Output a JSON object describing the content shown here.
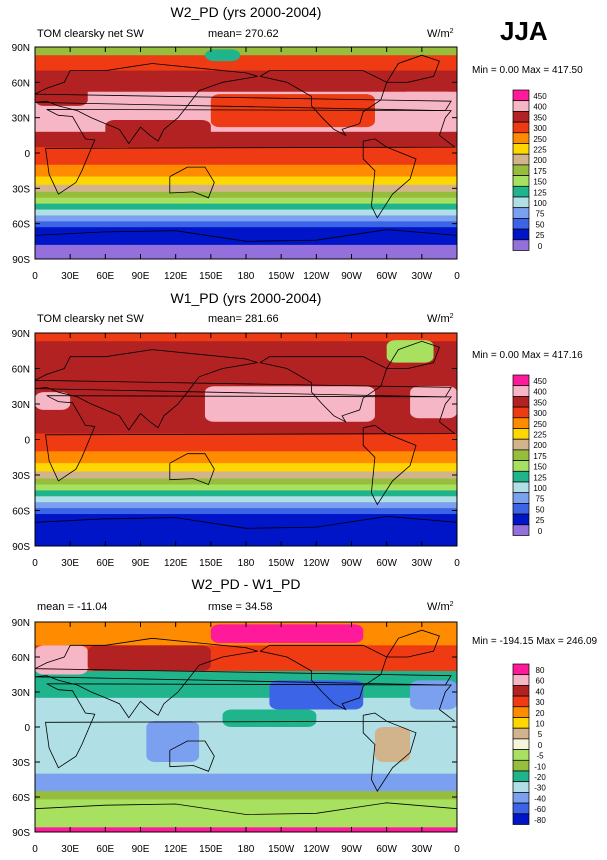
{
  "season": "JJA",
  "units": "W/m",
  "units_sup": "2",
  "chart_data": [
    {
      "type": "heatmap",
      "title": "W2_PD (yrs 2000-2004)",
      "subtitle_left": "TOM clearsky net SW",
      "subtitle_mid": "mean= 270.62",
      "minmax": "Min =   0.00 Max = 417.50",
      "xticks": [
        "0",
        "30E",
        "60E",
        "90E",
        "120E",
        "150E",
        "180",
        "150W",
        "120W",
        "90W",
        "60W",
        "30W",
        "0"
      ],
      "yticks": [
        "90N",
        "60N",
        "30N",
        "0",
        "30S",
        "60S",
        "90S"
      ],
      "xlim": [
        0,
        360
      ],
      "ylim": [
        -90,
        90
      ],
      "levels": [
        "450",
        "400",
        "350",
        "300",
        "250",
        "225",
        "200",
        "175",
        "150",
        "125",
        "100",
        "75",
        "50",
        "25",
        "0"
      ],
      "colors": [
        "#ff1a9c",
        "#f7b6c6",
        "#b22222",
        "#ee3b14",
        "#ff8c00",
        "#ffd700",
        "#d2b48c",
        "#96bd3c",
        "#a8e05f",
        "#1fb48c",
        "#b0e0e6",
        "#7ba0f0",
        "#3c64e6",
        "#0014c8",
        "#9370db"
      ],
      "bands": [
        {
          "lat1": 90,
          "lat2": 83,
          "level": "175"
        },
        {
          "lat1": 83,
          "lat2": 70,
          "level": "300"
        },
        {
          "lat1": 70,
          "lat2": 52,
          "level": "350"
        },
        {
          "lat1": 52,
          "lat2": 18,
          "level": "400"
        },
        {
          "lat1": 18,
          "lat2": 5,
          "level": "350"
        },
        {
          "lat1": 5,
          "lat2": -10,
          "level": "300"
        },
        {
          "lat1": -10,
          "lat2": -20,
          "level": "250"
        },
        {
          "lat1": -20,
          "lat2": -27,
          "level": "225"
        },
        {
          "lat1": -27,
          "lat2": -33,
          "level": "200"
        },
        {
          "lat1": -33,
          "lat2": -38,
          "level": "175"
        },
        {
          "lat1": -38,
          "lat2": -43,
          "level": "150"
        },
        {
          "lat1": -43,
          "lat2": -48,
          "level": "125"
        },
        {
          "lat1": -48,
          "lat2": -53,
          "level": "100"
        },
        {
          "lat1": -53,
          "lat2": -58,
          "level": "75"
        },
        {
          "lat1": -58,
          "lat2": -63,
          "level": "50"
        },
        {
          "lat1": -63,
          "lat2": -78,
          "level": "25"
        },
        {
          "lat1": -78,
          "lat2": -90,
          "level": "0"
        }
      ],
      "patches": [
        {
          "lon1": 150,
          "lon2": 290,
          "lat1": 50,
          "lat2": 22,
          "level": "300"
        },
        {
          "lon1": 60,
          "lon2": 150,
          "lat1": 28,
          "lat2": 12,
          "level": "350"
        },
        {
          "lon1": 0,
          "lon2": 45,
          "lat1": 62,
          "lat2": 40,
          "level": "350"
        },
        {
          "lon1": 310,
          "lon2": 360,
          "lat1": 52,
          "lat2": 28,
          "level": "400"
        },
        {
          "lon1": 145,
          "lon2": 175,
          "lat1": 88,
          "lat2": 78,
          "level": "125"
        }
      ]
    },
    {
      "type": "heatmap",
      "title": "W1_PD (yrs 2000-2004)",
      "subtitle_left": "TOM clearsky net SW",
      "subtitle_mid": "mean= 281.66",
      "minmax": "Min =   0.00 Max = 417.16",
      "xticks": [
        "0",
        "30E",
        "60E",
        "90E",
        "120E",
        "150E",
        "180",
        "150W",
        "120W",
        "90W",
        "60W",
        "30W",
        "0"
      ],
      "yticks": [
        "90N",
        "60N",
        "30N",
        "0",
        "30S",
        "60S",
        "90S"
      ],
      "xlim": [
        0,
        360
      ],
      "ylim": [
        -90,
        90
      ],
      "levels": [
        "450",
        "400",
        "350",
        "300",
        "250",
        "225",
        "200",
        "175",
        "150",
        "125",
        "100",
        "75",
        "50",
        "25",
        "0"
      ],
      "colors": [
        "#ff1a9c",
        "#f7b6c6",
        "#b22222",
        "#ee3b14",
        "#ff8c00",
        "#ffd700",
        "#d2b48c",
        "#96bd3c",
        "#a8e05f",
        "#1fb48c",
        "#b0e0e6",
        "#7ba0f0",
        "#3c64e6",
        "#0014c8",
        "#9370db"
      ],
      "bands": [
        {
          "lat1": 90,
          "lat2": 83,
          "level": "300"
        },
        {
          "lat1": 83,
          "lat2": 48,
          "level": "350"
        },
        {
          "lat1": 48,
          "lat2": 18,
          "level": "350"
        },
        {
          "lat1": 18,
          "lat2": 5,
          "level": "350"
        },
        {
          "lat1": 5,
          "lat2": -10,
          "level": "300"
        },
        {
          "lat1": -10,
          "lat2": -20,
          "level": "250"
        },
        {
          "lat1": -20,
          "lat2": -27,
          "level": "225"
        },
        {
          "lat1": -27,
          "lat2": -33,
          "level": "200"
        },
        {
          "lat1": -33,
          "lat2": -38,
          "level": "175"
        },
        {
          "lat1": -38,
          "lat2": -43,
          "level": "150"
        },
        {
          "lat1": -43,
          "lat2": -48,
          "level": "125"
        },
        {
          "lat1": -48,
          "lat2": -53,
          "level": "100"
        },
        {
          "lat1": -53,
          "lat2": -58,
          "level": "75"
        },
        {
          "lat1": -58,
          "lat2": -63,
          "level": "50"
        },
        {
          "lat1": -63,
          "lat2": -90,
          "level": "25"
        }
      ],
      "patches": [
        {
          "lon1": 145,
          "lon2": 290,
          "lat1": 45,
          "lat2": 15,
          "level": "400"
        },
        {
          "lon1": 320,
          "lon2": 360,
          "lat1": 45,
          "lat2": 18,
          "level": "400"
        },
        {
          "lon1": 0,
          "lon2": 30,
          "lat1": 40,
          "lat2": 25,
          "level": "400"
        },
        {
          "lon1": 300,
          "lon2": 340,
          "lat1": 84,
          "lat2": 65,
          "level": "150"
        }
      ]
    },
    {
      "type": "heatmap",
      "title": "W2_PD - W1_PD",
      "subtitle_left": "mean = -11.04",
      "subtitle_mid": "rmse =  34.58",
      "minmax": "Min = -194.15 Max = 246.09",
      "xticks": [
        "0",
        "30E",
        "60E",
        "90E",
        "120E",
        "150E",
        "180",
        "150W",
        "120W",
        "90W",
        "60W",
        "30W",
        "0"
      ],
      "yticks": [
        "90N",
        "60N",
        "30N",
        "0",
        "30S",
        "60S",
        "90S"
      ],
      "xlim": [
        0,
        360
      ],
      "ylim": [
        -90,
        90
      ],
      "levels": [
        "80",
        "60",
        "40",
        "30",
        "20",
        "10",
        "5",
        "0",
        "-5",
        "-10",
        "-20",
        "-30",
        "-40",
        "-60",
        "-80"
      ],
      "colors": [
        "#ff1a9c",
        "#f7b6c6",
        "#b22222",
        "#ee3b14",
        "#ff8c00",
        "#ffd700",
        "#d2b48c",
        "#f5f5dc",
        "#a8e05f",
        "#96bd3c",
        "#1fb48c",
        "#b0e0e6",
        "#7ba0f0",
        "#3c64e6",
        "#0014c8"
      ],
      "bands": [
        {
          "lat1": 90,
          "lat2": 70,
          "level": "20"
        },
        {
          "lat1": 70,
          "lat2": 48,
          "level": "30"
        },
        {
          "lat1": 48,
          "lat2": 25,
          "level": "-20"
        },
        {
          "lat1": 25,
          "lat2": 10,
          "level": "-30"
        },
        {
          "lat1": 10,
          "lat2": -40,
          "level": "-30"
        },
        {
          "lat1": -40,
          "lat2": -55,
          "level": "-40"
        },
        {
          "lat1": -55,
          "lat2": -62,
          "level": "-10"
        },
        {
          "lat1": -62,
          "lat2": -86,
          "level": "-5"
        },
        {
          "lat1": -86,
          "lat2": -90,
          "level": "80"
        }
      ],
      "patches": [
        {
          "lon1": 150,
          "lon2": 280,
          "lat1": 88,
          "lat2": 72,
          "level": "80"
        },
        {
          "lon1": 0,
          "lon2": 45,
          "lat1": 70,
          "lat2": 45,
          "level": "60"
        },
        {
          "lon1": 45,
          "lon2": 150,
          "lat1": 70,
          "lat2": 48,
          "level": "40"
        },
        {
          "lon1": 200,
          "lon2": 280,
          "lat1": 40,
          "lat2": 15,
          "level": "-60"
        },
        {
          "lon1": 320,
          "lon2": 360,
          "lat1": 40,
          "lat2": 15,
          "level": "-40"
        },
        {
          "lon1": 95,
          "lon2": 140,
          "lat1": 5,
          "lat2": -30,
          "level": "-40"
        },
        {
          "lon1": 290,
          "lon2": 320,
          "lat1": 0,
          "lat2": -30,
          "level": "5"
        },
        {
          "lon1": 160,
          "lon2": 240,
          "lat1": 15,
          "lat2": 0,
          "level": "-20"
        }
      ]
    }
  ]
}
